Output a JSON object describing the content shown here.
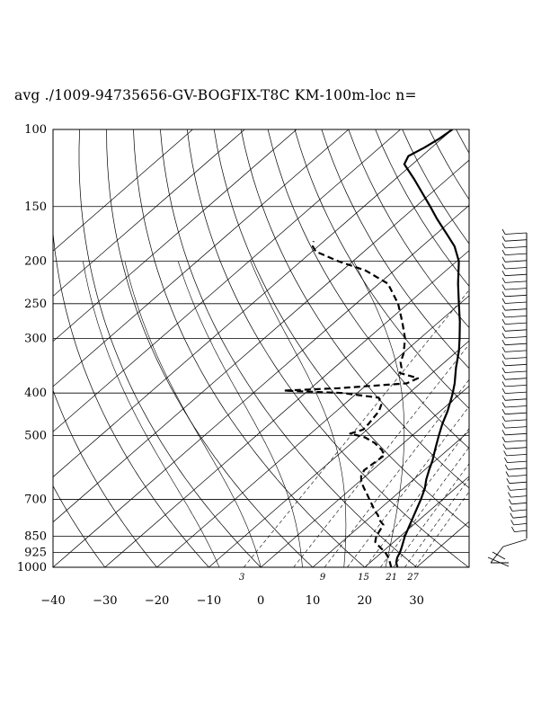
{
  "title": "avg ./1009-94735656-GV-BOGFIX-T8C KM-100m-loc n=",
  "chart_data": {
    "type": "skew-t",
    "title": "avg ./1009-94735656-GV-BOGFIX-T8C KM-100m-loc n=",
    "pressure_ticks": [
      {
        "p": 100,
        "label": "100"
      },
      {
        "p": 150,
        "label": "150"
      },
      {
        "p": 200,
        "label": "200"
      },
      {
        "p": 250,
        "label": "250"
      },
      {
        "p": 300,
        "label": "300"
      },
      {
        "p": 400,
        "label": "400"
      },
      {
        "p": 500,
        "label": "500"
      },
      {
        "p": 700,
        "label": "700"
      },
      {
        "p": 850,
        "label": "850"
      },
      {
        "p": 925,
        "label": "925"
      },
      {
        "p": 1000,
        "label": "1000"
      }
    ],
    "temperature_ticks": [
      {
        "t": -40,
        "label": "−40"
      },
      {
        "t": -30,
        "label": "−30"
      },
      {
        "t": -20,
        "label": "−20"
      },
      {
        "t": -10,
        "label": "−10"
      },
      {
        "t": 0,
        "label": "0"
      },
      {
        "t": 10,
        "label": "10"
      },
      {
        "t": 20,
        "label": "20"
      },
      {
        "t": 30,
        "label": "30"
      }
    ],
    "mixing_ratio_labels": [
      "3",
      "9",
      "15",
      "21",
      "27"
    ],
    "ylim": [
      1000,
      100
    ],
    "xlim_at_1000hPa": [
      -40,
      40
    ],
    "grid": true,
    "series": [
      {
        "style": "solid",
        "points": [
          [
            1000,
            26.3
          ],
          [
            975,
            25
          ],
          [
            950,
            24.1
          ],
          [
            925,
            23.5
          ],
          [
            900,
            22.7
          ],
          [
            875,
            21.8
          ],
          [
            850,
            20.9
          ],
          [
            800,
            19.3
          ],
          [
            750,
            17.6
          ],
          [
            700,
            15.8
          ],
          [
            660,
            14.1
          ],
          [
            630,
            12.4
          ],
          [
            600,
            10.9
          ],
          [
            570,
            9.4
          ],
          [
            540,
            7.6
          ],
          [
            500,
            5.1
          ],
          [
            470,
            3.2
          ],
          [
            440,
            1.4
          ],
          [
            410,
            -0.8
          ],
          [
            400,
            -1.6
          ],
          [
            380,
            -3.4
          ],
          [
            350,
            -6.6
          ],
          [
            320,
            -9.8
          ],
          [
            300,
            -12.4
          ],
          [
            275,
            -16
          ],
          [
            250,
            -20.2
          ],
          [
            225,
            -24.8
          ],
          [
            200,
            -29.6
          ],
          [
            185,
            -33.7
          ],
          [
            175,
            -37.3
          ],
          [
            160,
            -43.2
          ],
          [
            150,
            -47.2
          ],
          [
            140,
            -51.6
          ],
          [
            130,
            -56.3
          ],
          [
            120,
            -61.6
          ],
          [
            115,
            -62.6
          ],
          [
            110,
            -61.4
          ],
          [
            105,
            -60.5
          ],
          [
            100,
            -60
          ]
        ]
      },
      {
        "style": "dashed",
        "points": [
          [
            1000,
            25.1
          ],
          [
            975,
            23.8
          ],
          [
            950,
            22.4
          ],
          [
            925,
            20.7
          ],
          [
            900,
            18.5
          ],
          [
            875,
            16.4
          ],
          [
            850,
            15.4
          ],
          [
            825,
            14.8
          ],
          [
            800,
            14.2
          ],
          [
            780,
            12.4
          ],
          [
            760,
            11.0
          ],
          [
            740,
            9.2
          ],
          [
            720,
            7.6
          ],
          [
            700,
            5.9
          ],
          [
            680,
            4.2
          ],
          [
            660,
            2.4
          ],
          [
            640,
            0.6
          ],
          [
            620,
            -0.8
          ],
          [
            600,
            -1.6
          ],
          [
            585,
            -1.4
          ],
          [
            570,
            -1.2
          ],
          [
            555,
            -1.0
          ],
          [
            540,
            -2.6
          ],
          [
            520,
            -5.6
          ],
          [
            505,
            -8.7
          ],
          [
            495,
            -12.4
          ],
          [
            485,
            -10.8
          ],
          [
            470,
            -11.0
          ],
          [
            455,
            -11.4
          ],
          [
            440,
            -11.8
          ],
          [
            425,
            -12.8
          ],
          [
            410,
            -14.8
          ],
          [
            400,
            -22.8
          ],
          [
            395,
            -34.6
          ],
          [
            390,
            -24.6
          ],
          [
            380,
            -12.6
          ],
          [
            370,
            -11.6
          ],
          [
            360,
            -16.2
          ],
          [
            350,
            -17.1
          ],
          [
            340,
            -18.5
          ],
          [
            325,
            -19.8
          ],
          [
            300,
            -22.9
          ],
          [
            275,
            -27.1
          ],
          [
            250,
            -31.9
          ],
          [
            225,
            -38.3
          ],
          [
            210,
            -45.5
          ],
          [
            200,
            -52.8
          ],
          [
            190,
            -59.3
          ],
          [
            185,
            -61.0
          ],
          [
            180,
            -62.0
          ]
        ]
      }
    ]
  }
}
